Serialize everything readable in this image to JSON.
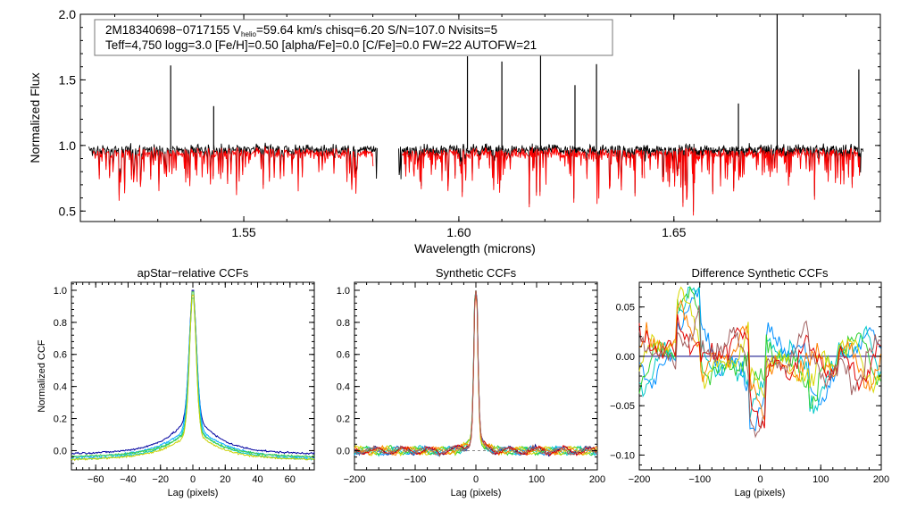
{
  "chart_data": [
    {
      "type": "line",
      "title": "",
      "info_line1": {
        "id": "2M18340698−0717155",
        "v_prefix": "V",
        "v_sub": "helio",
        "v_rest": "=59.64 km/s  chisq=6.20  S/N=107.0  Nvisits=5"
      },
      "info_line2": "Teff=4,750 logg=3.0 [Fe/H]=0.50 [alpha/Fe]=0.0 [C/Fe]=0.0 FW=22 AUTOFW=21",
      "xlabel": "Wavelength (microns)",
      "ylabel": "Normalized Flux",
      "xlim": [
        1.512,
        1.698
      ],
      "ylim": [
        0.42,
        2.0
      ],
      "xticks": [
        1.55,
        1.6,
        1.65
      ],
      "xtick_labels": [
        "1.55",
        "1.60",
        "1.65"
      ],
      "yticks": [
        0.5,
        1.0,
        1.5,
        2.0
      ],
      "ytick_labels": [
        "0.5",
        "1.0",
        "1.5",
        "2.0"
      ],
      "grid": false,
      "chip_ranges": [
        [
          1.514,
          1.581
        ],
        [
          1.586,
          1.644
        ],
        [
          1.643,
          1.694
        ]
      ],
      "series": [
        {
          "values_note": "",
          "color": "#000000"
        },
        {
          "color": "#ff0000"
        }
      ],
      "emission_lines": [
        {
          "x": 1.533,
          "y": 1.61
        },
        {
          "x": 1.543,
          "y": 1.3
        },
        {
          "x": 1.602,
          "y": 1.68
        },
        {
          "x": 1.61,
          "y": 1.64
        },
        {
          "x": 1.619,
          "y": 1.82
        },
        {
          "x": 1.627,
          "y": 1.46
        },
        {
          "x": 1.632,
          "y": 1.62
        },
        {
          "x": 1.665,
          "y": 1.32
        },
        {
          "x": 1.674,
          "y": 2.0
        },
        {
          "x": 1.693,
          "y": 1.58
        }
      ]
    },
    {
      "type": "line",
      "title": "apStar−relative CCFs",
      "xlabel": "Lag (pixels)",
      "ylabel": "Normalized CCF",
      "xlim": [
        -75,
        75
      ],
      "ylim": [
        -0.12,
        1.05
      ],
      "xticks": [
        -60,
        -40,
        -20,
        0,
        20,
        40,
        60
      ],
      "xtick_labels": [
        "−60",
        "−40",
        "−20",
        "0",
        "20",
        "40",
        "60"
      ],
      "yticks": [
        0.0,
        0.2,
        0.4,
        0.6,
        0.8,
        1.0
      ],
      "ytick_labels": [
        "0.0",
        "0.2",
        "0.4",
        "0.6",
        "0.8",
        "1.0"
      ],
      "grid": false,
      "series": [
        {
          "color": "#0000a0",
          "peak": 1.0,
          "width": 2.2,
          "wing": 0.26,
          "wing_width": 15,
          "offset": -0.02
        },
        {
          "color": "#00aaff",
          "peak": 0.97,
          "width": 2.4,
          "wing": 0.18,
          "wing_width": 18,
          "offset": -0.05
        },
        {
          "color": "#00c8c8",
          "peak": 0.95,
          "width": 2.2,
          "wing": 0.17,
          "wing_width": 16,
          "offset": -0.06
        },
        {
          "color": "#40d040",
          "peak": 0.99,
          "width": 2.0,
          "wing": 0.16,
          "wing_width": 15,
          "offset": -0.04
        },
        {
          "color": "#c8d000",
          "peak": 0.97,
          "width": 2.1,
          "wing": 0.14,
          "wing_width": 14,
          "offset": -0.06
        }
      ]
    },
    {
      "type": "line",
      "title": "Synthetic CCFs",
      "xlabel": "Lag (pixels)",
      "ylabel": "",
      "xlim": [
        -200,
        200
      ],
      "ylim": [
        -0.12,
        1.05
      ],
      "xticks": [
        -200,
        -100,
        0,
        100,
        200
      ],
      "xtick_labels": [
        "−200",
        "−100",
        "0",
        "100",
        "200"
      ],
      "yticks": [
        0.0,
        0.2,
        0.4,
        0.6,
        0.8,
        1.0
      ],
      "ytick_labels": [
        "0.0",
        "0.2",
        "0.4",
        "0.6",
        "0.8",
        "1.0"
      ],
      "grid": false,
      "series": [
        {
          "color": "#000080"
        },
        {
          "color": "#0090ff"
        },
        {
          "color": "#00c8c8"
        },
        {
          "color": "#30d030"
        },
        {
          "color": "#d8d800"
        },
        {
          "color": "#ff8000"
        },
        {
          "color": "#e00000"
        },
        {
          "color": "#a06060"
        }
      ]
    },
    {
      "type": "line",
      "title": "Difference Synthetic CCFs",
      "xlabel": "Lag (pixels)",
      "ylabel": "",
      "xlim": [
        -200,
        200
      ],
      "ylim": [
        -0.115,
        0.075
      ],
      "xticks": [
        -200,
        -100,
        0,
        100,
        200
      ],
      "xtick_labels": [
        "−200",
        "−100",
        "0",
        "100",
        "200"
      ],
      "yticks": [
        -0.1,
        -0.05,
        0.0,
        0.05
      ],
      "ytick_labels": [
        "−0.10",
        "−0.05",
        "0.00",
        "0.05"
      ],
      "grid": false,
      "zero_line_color": "#000080",
      "series": [
        {
          "color": "#0090ff"
        },
        {
          "color": "#00c8c8"
        },
        {
          "color": "#30d030"
        },
        {
          "color": "#d8d800"
        },
        {
          "color": "#ff8000"
        },
        {
          "color": "#e00000"
        },
        {
          "color": "#a06060"
        }
      ]
    }
  ]
}
